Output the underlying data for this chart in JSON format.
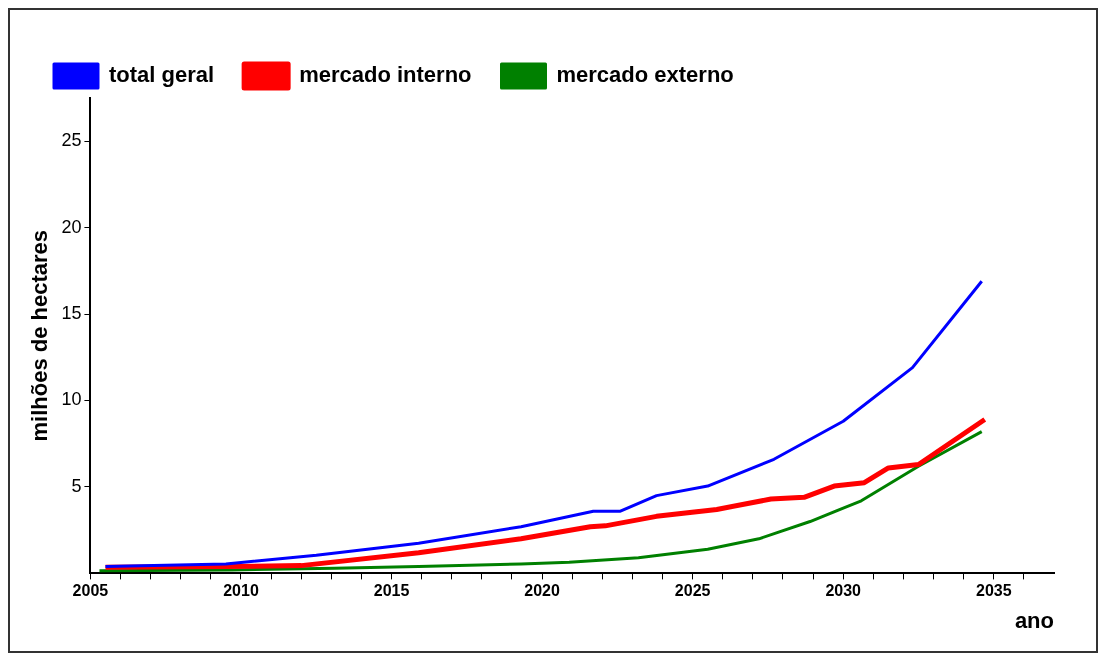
{
  "chart_data": {
    "type": "line",
    "xlabel": "ano",
    "ylabel": "milhões de hectares",
    "xlim": [
      2005,
      2037
    ],
    "ylim": [
      0,
      27.5
    ],
    "xticks": [
      2005,
      {
        "value": 2006,
        "label": null
      },
      {
        "value": 2007,
        "label": null
      },
      {
        "value": 2008,
        "label": null
      },
      {
        "value": 2009,
        "label": null
      },
      2010,
      {
        "value": 2011,
        "label": null
      },
      {
        "value": 2012,
        "label": null
      },
      {
        "value": 2013,
        "label": null
      },
      {
        "value": 2014,
        "label": null
      },
      2015,
      {
        "value": 2016,
        "label": null
      },
      {
        "value": 2017,
        "label": null
      },
      {
        "value": 2018,
        "label": null
      },
      {
        "value": 2019,
        "label": null
      },
      2020,
      {
        "value": 2021,
        "label": null
      },
      {
        "value": 2022,
        "label": null
      },
      {
        "value": 2023,
        "label": null
      },
      {
        "value": 2024,
        "label": null
      },
      2025,
      {
        "value": 2026,
        "label": null
      },
      {
        "value": 2027,
        "label": null
      },
      {
        "value": 2028,
        "label": null
      },
      {
        "value": 2029,
        "label": null
      },
      2030,
      {
        "value": 2031,
        "label": null
      },
      {
        "value": 2032,
        "label": null
      },
      {
        "value": 2033,
        "label": null
      },
      {
        "value": 2034,
        "label": null
      },
      2035,
      {
        "value": 2036,
        "label": null
      }
    ],
    "yticks": [
      5,
      10,
      15,
      20,
      25
    ],
    "grid": false,
    "legend": "top left",
    "marker": "none",
    "line_style": "solid",
    "series": [
      {
        "name": "total geral",
        "color": "#0000ff",
        "x": [
          2005.5,
          2009.5,
          2012.5,
          2015.9,
          2019.3,
          2021.7,
          2022.6,
          2023.8,
          2025.5,
          2027.7,
          2030.0,
          2032.3,
          2034.6
        ],
        "values": [
          0.4,
          0.55,
          1.05,
          1.75,
          2.7,
          3.6,
          3.6,
          4.5,
          5.05,
          6.6,
          8.8,
          11.9,
          16.9
        ]
      },
      {
        "name": "mercado interno",
        "color": "#ff0000",
        "x": [
          2005.5,
          2009.5,
          2012,
          2015.9,
          2019.3,
          2021.6,
          2022.1,
          2023.8,
          2025.8,
          2027.6,
          2028.7,
          2029.7,
          2030.7,
          2031.5,
          2032.5,
          2034.7
        ],
        "values": [
          0.35,
          0.4,
          0.45,
          1.2,
          2.0,
          2.7,
          2.75,
          3.3,
          3.7,
          4.3,
          4.4,
          5.05,
          5.25,
          6.1,
          6.3,
          8.9
        ]
      },
      {
        "name": "mercado externo",
        "color": "#008000",
        "x": [
          2005.3,
          2009.7,
          2013.1,
          2015.9,
          2019.3,
          2020.9,
          2023.2,
          2025.5,
          2027.2,
          2028.9,
          2030.6,
          2032.5,
          2034.6
        ],
        "values": [
          0.15,
          0.2,
          0.3,
          0.4,
          0.55,
          0.65,
          0.9,
          1.4,
          2.0,
          3.0,
          4.2,
          6.2,
          8.2
        ]
      }
    ]
  }
}
